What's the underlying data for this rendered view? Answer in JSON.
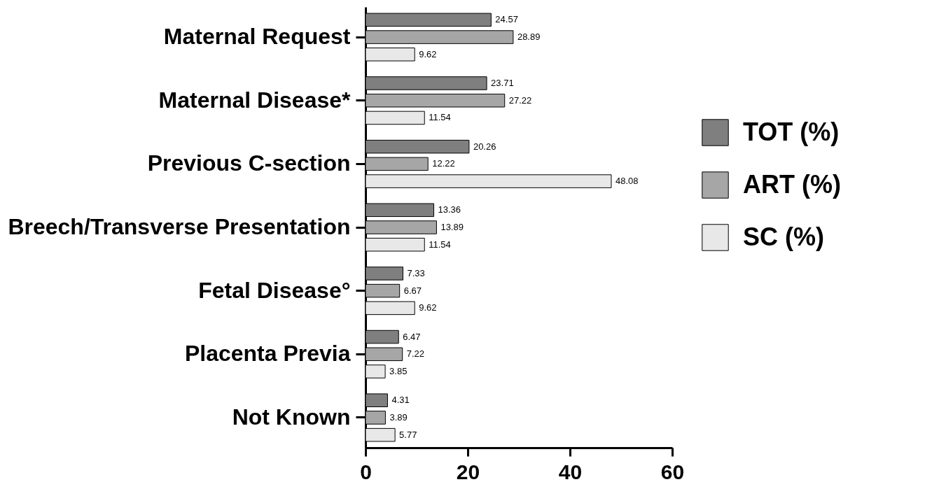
{
  "chart_data": {
    "type": "bar",
    "orientation": "horizontal",
    "categories": [
      "Maternal Request",
      "Maternal Disease*",
      "Previous C-section",
      "Breech/Transverse Presentation",
      "Fetal Disease°",
      "Placenta Previa",
      "Not Known"
    ],
    "series": [
      {
        "name": "TOT (%)",
        "color": "#7f7f7f",
        "values": [
          24.57,
          23.71,
          20.26,
          13.36,
          7.33,
          6.47,
          4.31
        ]
      },
      {
        "name": "ART (%)",
        "color": "#a6a6a6",
        "values": [
          28.89,
          27.22,
          12.22,
          13.89,
          6.67,
          7.22,
          3.89
        ]
      },
      {
        "name": "SC (%)",
        "color": "#e8e8e8",
        "values": [
          9.62,
          11.54,
          48.08,
          11.54,
          9.62,
          3.85,
          5.77
        ]
      }
    ],
    "xlim": [
      0,
      60
    ],
    "xticks": [
      0,
      20,
      40,
      60
    ],
    "data_labels": true,
    "legend": "right",
    "grid": false
  }
}
